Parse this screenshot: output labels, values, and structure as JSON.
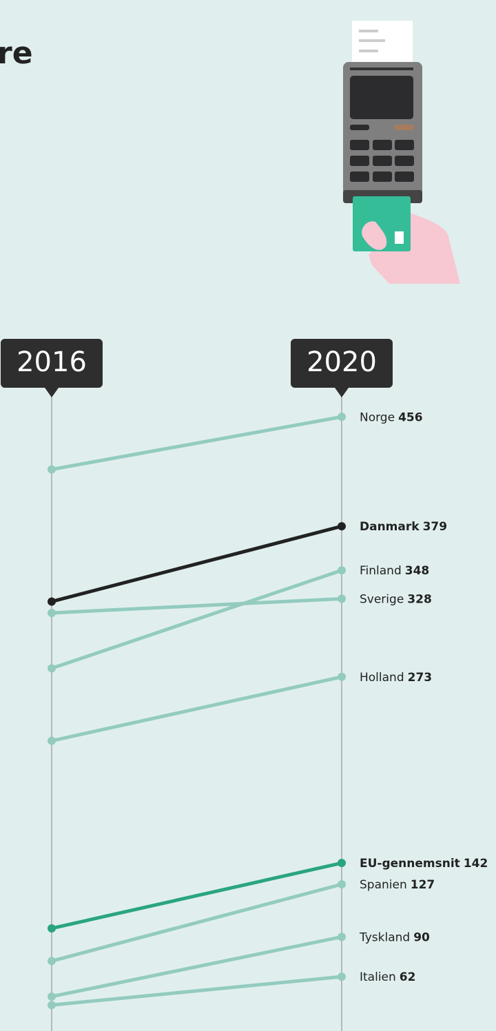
{
  "chart_data": {
    "type": "slope",
    "title": "re",
    "x": [
      "2016",
      "2020"
    ],
    "ylim": [
      0,
      500
    ],
    "series": [
      {
        "name": "Norge",
        "color": "#93cbbf",
        "bold": false,
        "values": [
          419,
          456
        ]
      },
      {
        "name": "Danmark",
        "color": "#222222",
        "bold": true,
        "values": [
          326,
          379
        ]
      },
      {
        "name": "Finland",
        "color": "#93cbbf",
        "bold": false,
        "values": [
          279,
          348
        ]
      },
      {
        "name": "Sverige",
        "color": "#93cbbf",
        "bold": false,
        "values": [
          318,
          328
        ]
      },
      {
        "name": "Holland",
        "color": "#93cbbf",
        "bold": false,
        "values": [
          228,
          273
        ]
      },
      {
        "name": "EU-gennemsnit",
        "color": "#2aa57f",
        "bold": true,
        "values": [
          96,
          142
        ]
      },
      {
        "name": "Spanien",
        "color": "#93cbbf",
        "bold": false,
        "values": [
          73,
          127
        ]
      },
      {
        "name": "Tyskland",
        "color": "#93cbbf",
        "bold": false,
        "values": [
          48,
          90
        ]
      },
      {
        "name": "Italien",
        "color": "#93cbbf",
        "bold": false,
        "values": [
          42,
          62
        ]
      }
    ]
  }
}
